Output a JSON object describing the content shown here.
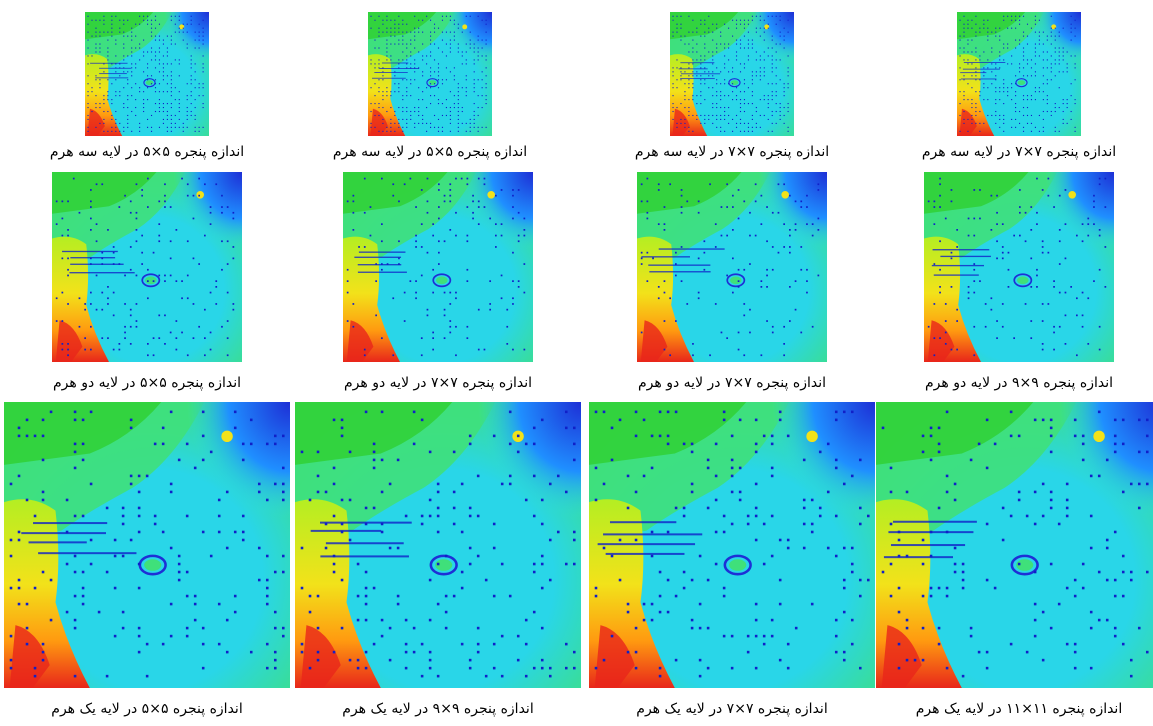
{
  "figure": {
    "rows": [
      {
        "level": 3,
        "panels": [
          {
            "caption": "اندازه پنجره ۷×۷ در لایه سه هرم"
          },
          {
            "caption": "اندازه پنجره ۷×۷ در لایه سه هرم"
          },
          {
            "caption": "اندازه پنجره ۵×۵ در لایه سه هرم"
          },
          {
            "caption": "اندازه پنجره ۵×۵ در لایه سه هرم"
          }
        ]
      },
      {
        "level": 2,
        "panels": [
          {
            "caption": "اندازه پنجره ۹×۹ در لایه دو هرم"
          },
          {
            "caption": "اندازه پنجره ۷×۷ در لایه دو هرم"
          },
          {
            "caption": "اندازه پنجره ۷×۷ در لایه دو هرم"
          },
          {
            "caption": "اندازه پنجره ۵×۵ در لایه دو هرم"
          }
        ]
      },
      {
        "level": 1,
        "panels": [
          {
            "caption": "اندازه پنجره ۱۱×۱۱ در لایه یک هرم"
          },
          {
            "caption": "اندازه پنجره ۷×۷ در لایه یک هرم"
          },
          {
            "caption": "اندازه پنجره ۹×۹ در لایه یک هرم"
          },
          {
            "caption": "اندازه پنجره ۵×۵ در لایه یک هرم"
          }
        ]
      }
    ],
    "colormap": [
      "#1e2fd6",
      "#1f8fff",
      "#29d6e8",
      "#3fe07a",
      "#2fd02f",
      "#b4ee22",
      "#f2e21a",
      "#ff9a10",
      "#e8261a",
      "#8a0a06"
    ],
    "dot_color": "#1020c8"
  }
}
